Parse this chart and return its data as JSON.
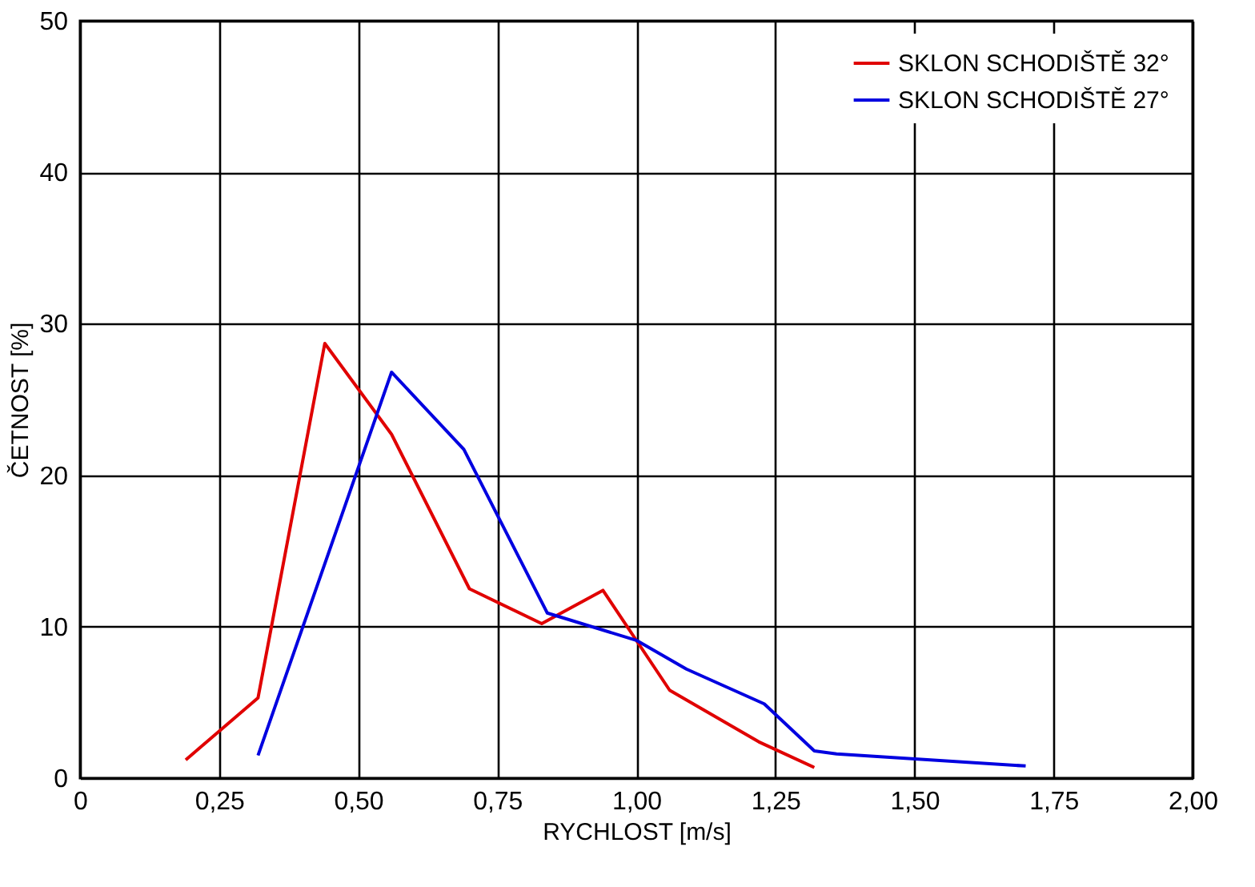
{
  "chart_data": {
    "type": "line",
    "xlabel": "RYCHLOST [m/s]",
    "ylabel": "ČETNOST [%]",
    "xlim": [
      0,
      2
    ],
    "ylim": [
      0,
      50
    ],
    "xticks": [
      0,
      {
        "value": 0.25,
        "label": "0,25"
      },
      {
        "value": 0.5,
        "label": "0,50"
      },
      {
        "value": 0.75,
        "label": "0,75"
      },
      {
        "value": 1,
        "label": "1,00"
      },
      {
        "value": 1.25,
        "label": "1,25"
      },
      {
        "value": 1.5,
        "label": "1,50"
      },
      {
        "value": 1.75,
        "label": "1,75"
      },
      {
        "value": 2,
        "label": "2,00"
      }
    ],
    "yticks": [
      0,
      10,
      20,
      30,
      40,
      50
    ],
    "grid": true,
    "legend": "top right",
    "line_style": "solid",
    "series": [
      {
        "name": "SKLON SCHODIŠTĚ 32°",
        "color": "#e00000",
        "x": [
          0.19,
          0.32,
          0.44,
          0.56,
          0.7,
          0.83,
          0.94,
          1.06,
          1.22,
          1.32
        ],
        "values": [
          1.2,
          5.3,
          28.7,
          22.7,
          12.5,
          10.2,
          12.4,
          5.8,
          2.4,
          0.7
        ]
      },
      {
        "name": "SKLON SCHODIŠTĚ 27°",
        "color": "#0000e0",
        "x": [
          0.32,
          0.56,
          0.69,
          0.84,
          1.0,
          1.09,
          1.23,
          1.32,
          1.36,
          1.7
        ],
        "values": [
          1.5,
          26.8,
          21.7,
          10.9,
          9.1,
          7.2,
          4.9,
          1.8,
          1.6,
          0.8
        ]
      }
    ]
  }
}
